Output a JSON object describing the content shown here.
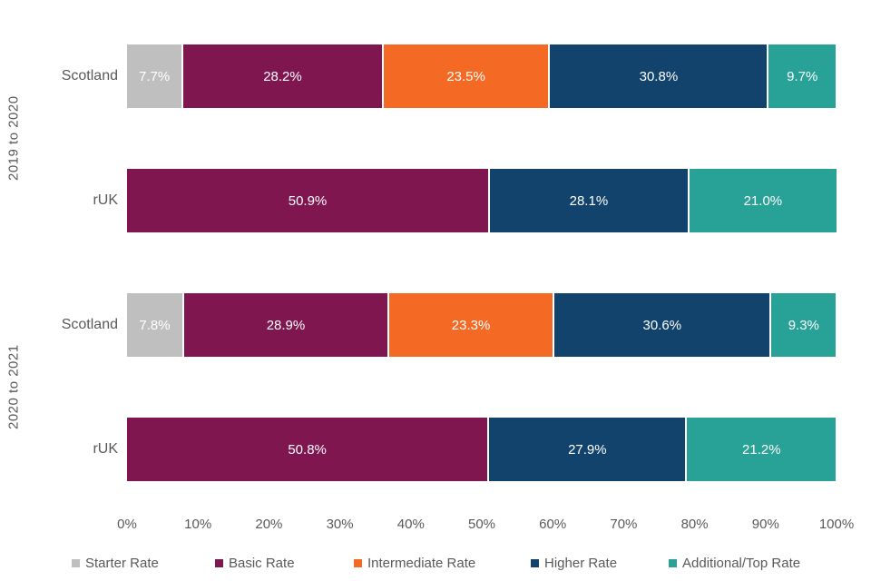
{
  "chart_data": {
    "type": "bar",
    "stacked": true,
    "orientation": "horizontal",
    "unit": "%",
    "xlim": [
      0,
      100
    ],
    "grid": false,
    "legend_position": "bottom",
    "x_ticks": [
      "0%",
      "10%",
      "20%",
      "30%",
      "40%",
      "50%",
      "60%",
      "70%",
      "80%",
      "90%",
      "100%"
    ],
    "series_colors": {
      "Starter Rate": "#bfbfbf",
      "Basic Rate": "#801650",
      "Intermediate Rate": "#f46a25",
      "Higher Rate": "#12436d",
      "Additional/Top Rate": "#28a197"
    },
    "legend": [
      {
        "label": "Starter Rate",
        "color": "#bfbfbf"
      },
      {
        "label": "Basic Rate",
        "color": "#801650"
      },
      {
        "label": "Intermediate Rate",
        "color": "#f46a25"
      },
      {
        "label": "Higher Rate",
        "color": "#12436d"
      },
      {
        "label": "Additional/Top Rate",
        "color": "#28a197"
      }
    ],
    "groups": [
      {
        "label": "2019 to 2020",
        "rows": [
          {
            "label": "Scotland",
            "segments": [
              {
                "series": "Starter Rate",
                "value": 7.7,
                "label": "7.7%"
              },
              {
                "series": "Basic Rate",
                "value": 28.2,
                "label": "28.2%"
              },
              {
                "series": "Intermediate Rate",
                "value": 23.5,
                "label": "23.5%"
              },
              {
                "series": "Higher Rate",
                "value": 30.8,
                "label": "30.8%"
              },
              {
                "series": "Additional/Top Rate",
                "value": 9.7,
                "label": "9.7%"
              }
            ]
          },
          {
            "label": "rUK",
            "segments": [
              {
                "series": "Basic Rate",
                "value": 50.9,
                "label": "50.9%"
              },
              {
                "series": "Higher Rate",
                "value": 28.1,
                "label": "28.1%"
              },
              {
                "series": "Additional/Top Rate",
                "value": 21.0,
                "label": "21.0%"
              }
            ]
          }
        ]
      },
      {
        "label": "2020 to 2021",
        "rows": [
          {
            "label": "Scotland",
            "segments": [
              {
                "series": "Starter Rate",
                "value": 7.8,
                "label": "7.8%"
              },
              {
                "series": "Basic Rate",
                "value": 28.9,
                "label": "28.9%"
              },
              {
                "series": "Intermediate Rate",
                "value": 23.3,
                "label": "23.3%"
              },
              {
                "series": "Higher Rate",
                "value": 30.6,
                "label": "30.6%"
              },
              {
                "series": "Additional/Top Rate",
                "value": 9.3,
                "label": "9.3%"
              }
            ]
          },
          {
            "label": "rUK",
            "segments": [
              {
                "series": "Basic Rate",
                "value": 50.8,
                "label": "50.8%"
              },
              {
                "series": "Higher Rate",
                "value": 27.9,
                "label": "27.9%"
              },
              {
                "series": "Additional/Top Rate",
                "value": 21.2,
                "label": "21.2%"
              }
            ]
          }
        ]
      }
    ]
  }
}
